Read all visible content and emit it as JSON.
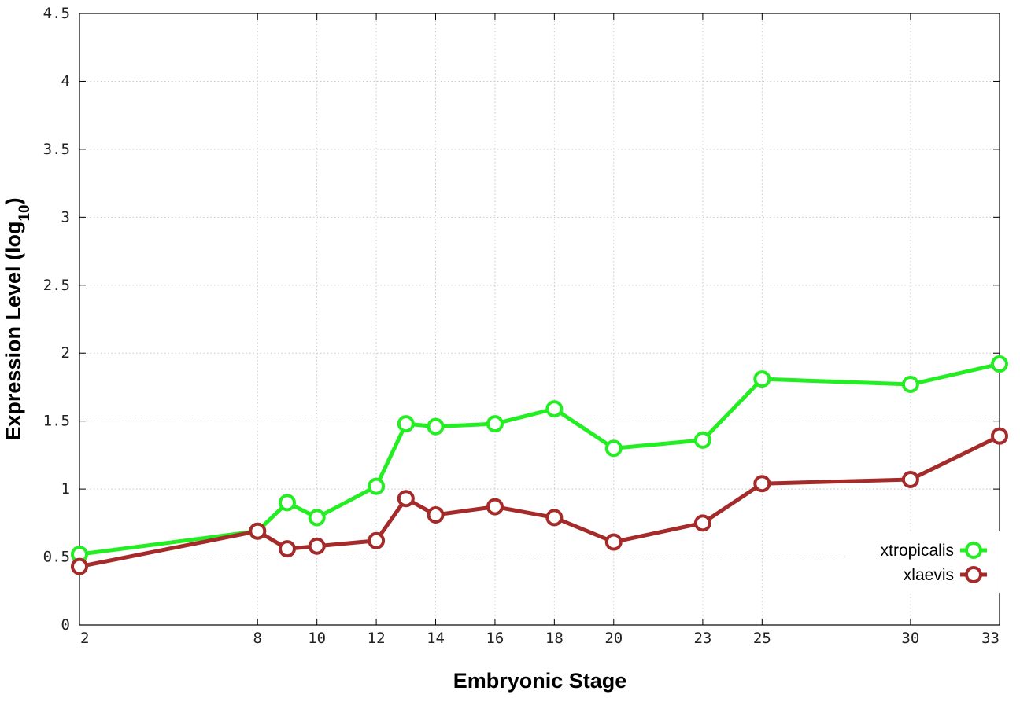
{
  "chart_data": {
    "type": "line",
    "xlabel": "Embryonic Stage",
    "ylabel_main": "Expression Level (log",
    "ylabel_sub": "10",
    "ylabel_close": ")",
    "xlim": [
      2,
      33
    ],
    "ylim": [
      0,
      4.5
    ],
    "x_ticks": [
      2,
      8,
      10,
      12,
      14,
      16,
      18,
      20,
      23,
      25,
      30,
      33
    ],
    "y_ticks": [
      0,
      0.5,
      1,
      1.5,
      2,
      2.5,
      3,
      3.5,
      4,
      4.5
    ],
    "x_tick_labels": [
      "2",
      "8",
      "10",
      "12",
      "14",
      "16",
      "18",
      "20",
      "23",
      "25",
      "30",
      "33"
    ],
    "y_tick_labels": [
      "0",
      "0.5",
      "1",
      "1.5",
      "2",
      "2.5",
      "3",
      "3.5",
      "4",
      "4.5"
    ],
    "grid": true,
    "legend_position": "bottom-right",
    "series": [
      {
        "name": "xtropicalis",
        "color": "#22ee22",
        "x": [
          2,
          8,
          9,
          10,
          12,
          13,
          14,
          16,
          18,
          20,
          23,
          25,
          30,
          33
        ],
        "y": [
          0.52,
          0.69,
          0.9,
          0.79,
          1.02,
          1.48,
          1.46,
          1.48,
          1.59,
          1.3,
          1.36,
          1.81,
          1.77,
          1.92
        ]
      },
      {
        "name": "xlaevis",
        "color": "#a52a2a",
        "x": [
          2,
          8,
          9,
          10,
          12,
          13,
          14,
          16,
          18,
          20,
          23,
          25,
          30,
          33
        ],
        "y": [
          0.43,
          0.69,
          0.56,
          0.58,
          0.62,
          0.93,
          0.81,
          0.87,
          0.79,
          0.61,
          0.75,
          1.04,
          1.07,
          1.39
        ]
      }
    ]
  }
}
